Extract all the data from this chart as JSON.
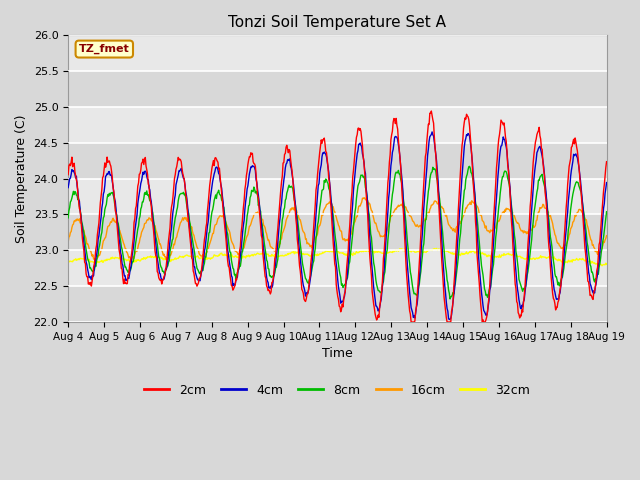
{
  "title": "Tonzi Soil Temperature Set A",
  "xlabel": "Time",
  "ylabel": "Soil Temperature (C)",
  "annotation": "TZ_fmet",
  "ylim": [
    22.0,
    26.0
  ],
  "yticks": [
    22.0,
    22.5,
    23.0,
    23.5,
    24.0,
    24.5,
    25.0,
    25.5,
    26.0
  ],
  "xtick_labels": [
    "Aug 4",
    "Aug 5",
    "Aug 6",
    "Aug 7",
    "Aug 8",
    "Aug 9",
    "Aug 10",
    "Aug 11",
    "Aug 12",
    "Aug 13",
    "Aug 14",
    "Aug 15",
    "Aug 16",
    "Aug 17",
    "Aug 18",
    "Aug 19"
  ],
  "colors": {
    "2cm": "#ff0000",
    "4cm": "#0000cc",
    "8cm": "#00bb00",
    "16cm": "#ff9900",
    "32cm": "#ffff00"
  },
  "bg_color": "#d8d8d8",
  "plot_bg_color": "#e8e8e8",
  "stripe_colors": [
    "#d8d8d8",
    "#e8e8e8"
  ],
  "annotation_bg": "#ffffcc",
  "annotation_border": "#cc8800",
  "figsize": [
    6.4,
    4.8
  ],
  "dpi": 100
}
